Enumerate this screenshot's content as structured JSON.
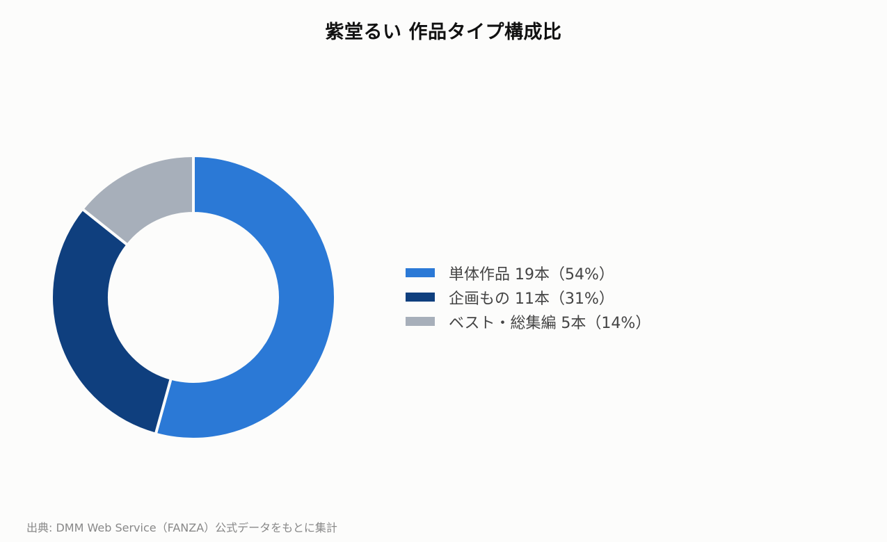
{
  "chart_data": {
    "type": "pie",
    "donut": true,
    "title": "紫堂るい 作品タイプ構成比",
    "categories": [
      "単体作品",
      "企画もの",
      "ベスト・総集編"
    ],
    "values": [
      19,
      11,
      5
    ],
    "unit": "本",
    "percentages": [
      54,
      31,
      14
    ],
    "colors": [
      "#2b79d6",
      "#0f3f7e",
      "#a7afba"
    ],
    "legend_labels": [
      "単体作品 19本（54%）",
      "企画もの 11本（31%）",
      "ベスト・総集編 5本（14%）"
    ],
    "legend_placement": "right"
  },
  "source_note": "出典: DMM Web Service（FANZA）公式データをもとに集計"
}
